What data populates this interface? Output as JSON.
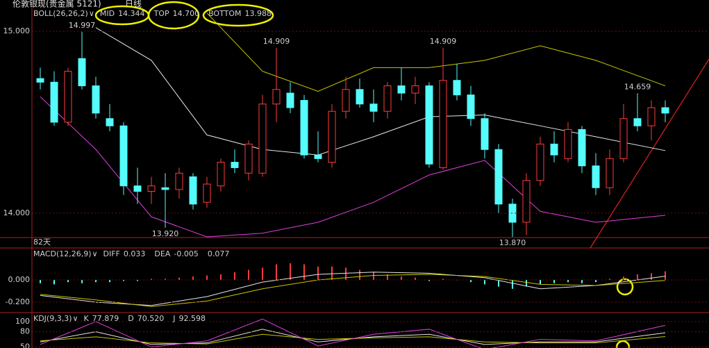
{
  "header": {
    "symbol": "伦敦银现(贵金属 5121)",
    "period": "日线"
  },
  "chart_data": [
    {
      "type": "candlestick",
      "indicator": "BOLL(26,26,2)",
      "span_label": "82天",
      "up_color": "#ff3c3c",
      "down_color": "#54fcfc",
      "ylim": [
        13.866,
        15.126
      ],
      "yticks": [
        {
          "value": 15,
          "label": "15.000"
        },
        {
          "value": 14,
          "label": "14.000"
        }
      ],
      "candles": [
        [
          14.74,
          14.8,
          14.68,
          14.72
        ],
        [
          14.72,
          14.78,
          14.48,
          14.5
        ],
        [
          14.5,
          14.8,
          14.48,
          14.78
        ],
        [
          14.85,
          14.997,
          14.68,
          14.7
        ],
        [
          14.7,
          14.75,
          14.52,
          14.55
        ],
        [
          14.52,
          14.6,
          14.45,
          14.48
        ],
        [
          14.48,
          14.5,
          14.1,
          14.15
        ],
        [
          14.15,
          14.25,
          14.05,
          14.12
        ],
        [
          14.12,
          14.2,
          14.05,
          14.15
        ],
        [
          14.14,
          14.22,
          13.92,
          14.13
        ],
        [
          14.13,
          14.25,
          14.08,
          14.22
        ],
        [
          14.2,
          14.22,
          14.02,
          14.05
        ],
        [
          14.06,
          14.2,
          14.03,
          14.16
        ],
        [
          14.15,
          14.3,
          14.12,
          14.28
        ],
        [
          14.28,
          14.35,
          14.22,
          14.25
        ],
        [
          14.22,
          14.4,
          14.18,
          14.38
        ],
        [
          14.22,
          14.65,
          14.2,
          14.6
        ],
        [
          14.6,
          14.909,
          14.5,
          14.68
        ],
        [
          14.66,
          14.72,
          14.55,
          14.58
        ],
        [
          14.62,
          14.65,
          14.3,
          14.32
        ],
        [
          14.32,
          14.45,
          14.28,
          14.3
        ],
        [
          14.28,
          14.6,
          14.25,
          14.56
        ],
        [
          14.56,
          14.75,
          14.52,
          14.68
        ],
        [
          14.68,
          14.74,
          14.58,
          14.6
        ],
        [
          14.6,
          14.68,
          14.5,
          14.56
        ],
        [
          14.56,
          14.72,
          14.52,
          14.7
        ],
        [
          14.7,
          14.8,
          14.62,
          14.66
        ],
        [
          14.66,
          14.75,
          14.6,
          14.7
        ],
        [
          14.7,
          14.72,
          14.25,
          14.27
        ],
        [
          14.25,
          14.909,
          14.24,
          14.73
        ],
        [
          14.73,
          14.82,
          14.62,
          14.65
        ],
        [
          14.65,
          14.7,
          14.48,
          14.52
        ],
        [
          14.52,
          14.55,
          14.3,
          14.35
        ],
        [
          14.35,
          14.38,
          14.0,
          14.05
        ],
        [
          14.05,
          14.08,
          13.87,
          13.95
        ],
        [
          13.95,
          14.22,
          13.88,
          14.18
        ],
        [
          14.18,
          14.42,
          14.15,
          14.38
        ],
        [
          14.38,
          14.45,
          14.28,
          14.32
        ],
        [
          14.3,
          14.5,
          14.28,
          14.46
        ],
        [
          14.46,
          14.48,
          14.22,
          14.26
        ],
        [
          14.26,
          14.33,
          14.1,
          14.14
        ],
        [
          14.14,
          14.35,
          14.1,
          14.3
        ],
        [
          14.3,
          14.6,
          14.28,
          14.52
        ],
        [
          14.52,
          14.659,
          14.45,
          14.48
        ],
        [
          14.48,
          14.62,
          14.4,
          14.58
        ],
        [
          14.58,
          14.62,
          14.5,
          14.55
        ]
      ],
      "annotations": [
        {
          "value": 14.997,
          "label": "14.997"
        },
        {
          "value": 14.909,
          "label": "14.909"
        },
        {
          "value": 14.909,
          "label": "14.909"
        },
        {
          "value": 14.659,
          "label": "14.659"
        },
        {
          "value": 13.92,
          "label": "13.920"
        },
        {
          "value": 13.87,
          "label": "13.870"
        }
      ],
      "x": [
        0,
        4,
        8,
        12,
        16,
        20,
        24,
        28,
        32,
        36,
        40,
        45
      ],
      "series": [
        {
          "name": "MID",
          "color": "#e8e8e8",
          "current": 14.344,
          "values": [
            null,
            15.02,
            14.84,
            14.43,
            14.35,
            14.32,
            14.42,
            14.53,
            14.54,
            14.48,
            14.42,
            14.344
          ]
        },
        {
          "name": "TOP",
          "color": "#c8c800",
          "current": {
            "value": 14.7,
            "label": "14.700"
          },
          "values": [
            null,
            null,
            null,
            15.1,
            14.78,
            14.67,
            14.8,
            14.8,
            14.84,
            14.92,
            14.84,
            14.7
          ]
        },
        {
          "name": "BOTTOM",
          "color": "#e040e0",
          "current": 13.988,
          "values": [
            14.64,
            14.35,
            13.98,
            13.87,
            13.89,
            13.95,
            14.06,
            14.21,
            14.29,
            14.01,
            13.95,
            13.988
          ]
        }
      ]
    },
    {
      "type": "macd",
      "indicator": "MACD(12,26,9)",
      "up_color": "#ff3c3c",
      "down_color": "#54fcfc",
      "ylim": [
        -0.294,
        0.281
      ],
      "yticks": [
        {
          "value": 0,
          "label": "0.000"
        },
        {
          "value": -0.2,
          "label": "-0.200"
        }
      ],
      "histogram": {
        "current": 0.077,
        "values": [
          -0.03,
          -0.04,
          -0.02,
          -0.03,
          -0.02,
          -0.02,
          -0.01,
          -0.01,
          0.01,
          0.01,
          0.02,
          0.03,
          0.04,
          0.05,
          0.07,
          0.09,
          0.11,
          0.14,
          0.15,
          0.14,
          0.12,
          0.12,
          0.11,
          0.09,
          0.07,
          0.05,
          0.03,
          0.02,
          -0.01,
          0.01,
          0.0,
          -0.02,
          -0.04,
          -0.06,
          -0.08,
          -0.06,
          -0.04,
          -0.03,
          -0.02,
          -0.03,
          -0.02,
          0.01,
          0.03,
          0.05,
          0.06,
          0.077
        ]
      },
      "x": [
        0,
        4,
        8,
        12,
        16,
        20,
        24,
        28,
        32,
        36,
        40,
        45
      ],
      "series": [
        {
          "name": "DIFF",
          "color": "#e8e8e8",
          "current": 0.033,
          "values": [
            -0.14,
            -0.2,
            -0.23,
            -0.15,
            -0.02,
            0.05,
            0.07,
            0.06,
            0.02,
            -0.08,
            -0.05,
            0.033
          ]
        },
        {
          "name": "DEA",
          "color": "#c8c800",
          "current": -0.005,
          "values": [
            -0.13,
            -0.18,
            -0.24,
            -0.19,
            -0.08,
            0.0,
            0.04,
            0.05,
            0.03,
            -0.04,
            -0.05,
            -0.005
          ]
        }
      ]
    },
    {
      "type": "line",
      "indicator": "KDJ(9,3,3)",
      "ylim": [
        48,
        115
      ],
      "yticks": [
        100,
        80,
        50
      ],
      "x": [
        0,
        4,
        8,
        12,
        16,
        20,
        24,
        28,
        32,
        36,
        40,
        45
      ],
      "series": [
        {
          "name": "K",
          "color": "#e8e8e8",
          "current": 77.879,
          "values": [
            60,
            80,
            55,
            58,
            85,
            60,
            70,
            75,
            55,
            60,
            60,
            77.879
          ]
        },
        {
          "name": "D",
          "color": "#c8c800",
          "current": {
            "value": 70.52,
            "label": "70.520"
          },
          "values": [
            62,
            70,
            58,
            56,
            75,
            65,
            68,
            70,
            60,
            58,
            58,
            70.52
          ]
        },
        {
          "name": "J",
          "color": "#e040e0",
          "current": 92.598,
          "values": [
            55,
            100,
            50,
            62,
            105,
            52,
            75,
            85,
            45,
            65,
            62,
            92.598
          ]
        }
      ]
    }
  ]
}
